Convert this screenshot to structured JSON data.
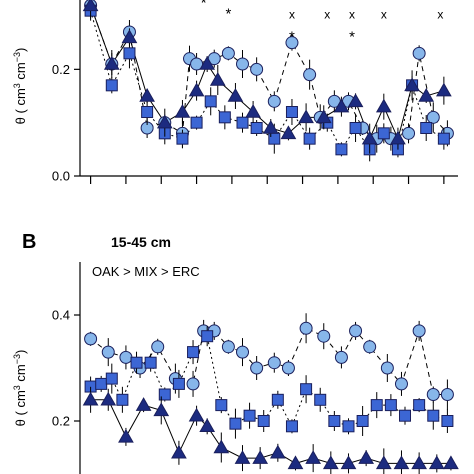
{
  "chart_data": [
    {
      "type": "scatter",
      "panel": "A",
      "ylabel": "θ ( cm³ cm⁻³)",
      "ylim": [
        0.0,
        0.33
      ],
      "yticks": [
        {
          "value": 0.0,
          "label": "0.0"
        },
        {
          "value": 0.2,
          "label": "0.2"
        }
      ],
      "xticks": [
        0,
        1,
        2,
        3,
        4,
        5,
        6,
        7,
        8,
        9,
        10
      ],
      "xlim": [
        -0.3,
        10.4
      ],
      "annotations": [
        {
          "text": "*",
          "x": 3.2,
          "y": 0.325
        },
        {
          "text": "*",
          "x": 3.9,
          "y": 0.305
        },
        {
          "text": "x",
          "x": 5.7,
          "y": 0.305
        },
        {
          "text": "*",
          "x": 5.7,
          "y": 0.262
        },
        {
          "text": "x",
          "x": 6.7,
          "y": 0.305
        },
        {
          "text": "x",
          "x": 7.4,
          "y": 0.305
        },
        {
          "text": "*",
          "x": 7.4,
          "y": 0.262
        },
        {
          "text": "x",
          "x": 8.3,
          "y": 0.305
        },
        {
          "text": "x",
          "x": 9.9,
          "y": 0.305
        }
      ],
      "series": [
        {
          "marker": "circle",
          "line": "dashed",
          "x": [
            0.0,
            0.6,
            1.1,
            1.6,
            2.1,
            2.6,
            2.8,
            3.0,
            3.5,
            3.9,
            4.3,
            4.7,
            5.2,
            5.7,
            6.2,
            6.5,
            6.9,
            7.3,
            7.7,
            8.1,
            8.5,
            9.0,
            9.3,
            9.7,
            10.1
          ],
          "y": [
            0.32,
            0.21,
            0.27,
            0.09,
            0.1,
            0.08,
            0.22,
            0.21,
            0.22,
            0.23,
            0.21,
            0.2,
            0.14,
            0.25,
            0.19,
            0.11,
            0.14,
            0.14,
            0.09,
            0.07,
            0.07,
            0.08,
            0.23,
            0.11,
            0.08
          ]
        },
        {
          "marker": "square",
          "line": "dotted",
          "x": [
            0.0,
            0.6,
            1.1,
            1.6,
            2.1,
            2.6,
            3.0,
            3.4,
            3.8,
            4.3,
            4.7,
            5.2,
            5.7,
            6.2,
            6.7,
            7.1,
            7.5,
            7.9,
            8.3,
            8.7,
            9.1,
            9.5,
            10.0
          ],
          "y": [
            0.31,
            0.17,
            0.23,
            0.12,
            0.08,
            0.07,
            0.1,
            0.14,
            0.11,
            0.1,
            0.09,
            0.07,
            0.12,
            0.07,
            0.1,
            0.05,
            0.09,
            0.05,
            0.08,
            0.05,
            0.17,
            0.09,
            0.07
          ]
        },
        {
          "marker": "triangle",
          "line": "solid",
          "x": [
            0.0,
            0.6,
            1.1,
            1.6,
            2.1,
            2.6,
            3.0,
            3.3,
            3.6,
            4.1,
            4.6,
            5.1,
            5.6,
            6.1,
            6.6,
            7.1,
            7.5,
            7.9,
            8.3,
            8.7,
            9.1,
            9.5,
            10.0
          ],
          "y": [
            0.32,
            0.21,
            0.26,
            0.15,
            0.1,
            0.12,
            0.16,
            0.21,
            0.18,
            0.15,
            0.12,
            0.09,
            0.08,
            0.11,
            0.11,
            0.13,
            0.14,
            0.07,
            0.13,
            0.07,
            0.17,
            0.15,
            0.16
          ]
        }
      ]
    },
    {
      "type": "scatter",
      "panel": "B",
      "title": "15-45 cm",
      "subtitle": "OAK > MIX > ERC",
      "ylabel": "θ ( cm³ cm⁻³)",
      "ylim": [
        0.1,
        0.5
      ],
      "yticks": [
        {
          "value": 0.2,
          "label": "0.2"
        },
        {
          "value": 0.4,
          "label": "0.4"
        }
      ],
      "xlim": [
        -0.3,
        10.4
      ],
      "series": [
        {
          "marker": "circle",
          "line": "dashed",
          "x": [
            0.0,
            0.5,
            1.0,
            1.4,
            1.9,
            2.4,
            2.9,
            3.2,
            3.5,
            3.9,
            4.3,
            4.7,
            5.2,
            5.6,
            6.1,
            6.6,
            7.1,
            7.5,
            7.9,
            8.4,
            8.8,
            9.3,
            9.7,
            10.1
          ],
          "y": [
            0.355,
            0.33,
            0.32,
            0.3,
            0.34,
            0.28,
            0.27,
            0.37,
            0.37,
            0.34,
            0.33,
            0.3,
            0.31,
            0.3,
            0.375,
            0.36,
            0.32,
            0.37,
            0.34,
            0.3,
            0.27,
            0.37,
            0.25,
            0.25
          ]
        },
        {
          "marker": "square",
          "line": "dotted",
          "x": [
            0.0,
            0.3,
            0.6,
            0.9,
            1.3,
            1.7,
            2.1,
            2.5,
            2.9,
            3.3,
            3.7,
            4.1,
            4.5,
            4.9,
            5.3,
            5.7,
            6.1,
            6.5,
            6.9,
            7.3,
            7.7,
            8.1,
            8.5,
            8.9,
            9.3,
            9.7,
            10.1
          ],
          "y": [
            0.265,
            0.27,
            0.28,
            0.24,
            0.31,
            0.31,
            0.25,
            0.27,
            0.33,
            0.36,
            0.23,
            0.195,
            0.21,
            0.2,
            0.24,
            0.19,
            0.26,
            0.24,
            0.2,
            0.19,
            0.2,
            0.23,
            0.23,
            0.21,
            0.23,
            0.21,
            0.2
          ]
        },
        {
          "marker": "triangle",
          "line": "solid",
          "x": [
            0.0,
            0.5,
            1.0,
            1.5,
            2.0,
            2.5,
            3.0,
            3.3,
            3.7,
            4.3,
            4.8,
            5.3,
            5.8,
            6.3,
            6.8,
            7.3,
            7.8,
            8.3,
            8.8,
            9.3,
            9.8,
            10.2
          ],
          "y": [
            0.24,
            0.24,
            0.17,
            0.23,
            0.22,
            0.14,
            0.21,
            0.19,
            0.15,
            0.13,
            0.13,
            0.14,
            0.12,
            0.13,
            0.12,
            0.12,
            0.13,
            0.12,
            0.12,
            0.12,
            0.12,
            0.12
          ]
        }
      ]
    }
  ],
  "figure": {
    "panel_b_label": "B",
    "panel_b_depth": "15-45 cm",
    "panel_b_order": "OAK > MIX > ERC",
    "ylabel_text": "θ ( cm",
    "ylabel_sup1": "3",
    "ylabel_mid": " cm",
    "ylabel_sup2": "−3",
    "ylabel_tail": ")",
    "colors": {
      "circle_fill": "#87b6ea",
      "square_fill": "#3c66d4",
      "triangle_fill": "#1c2b80",
      "edge": "#1a1f5c",
      "line": "#000000"
    }
  }
}
